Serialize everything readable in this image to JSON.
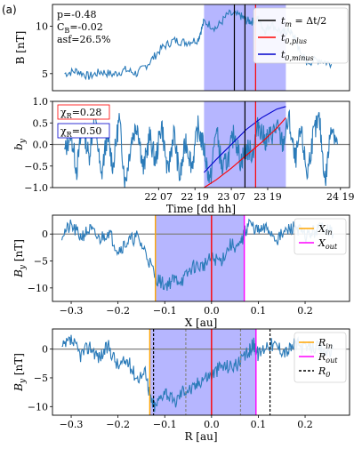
{
  "panel_label": "(a)",
  "colors": {
    "trace": "#2b7bb9",
    "shade": "#7a7aff",
    "zero": "#808080",
    "tm": "#000000",
    "plus": "#ff0000",
    "minus": "#0000cc",
    "in": "#ffa500",
    "out": "#ff00ff"
  },
  "chart_data": [
    {
      "id": "B",
      "type": "line",
      "ylabel": "B [nT]",
      "ylim": [
        3.2,
        12.3
      ],
      "yticks": [
        "5",
        "10"
      ],
      "yticks_vals": [
        5,
        10
      ],
      "annotation_lines": [
        "p=-0.48",
        "C_B=-0.02",
        "asf=26.5%"
      ],
      "legend": {
        "placement": "top-right",
        "entries": [
          {
            "label": "t_m = Δt/2",
            "color": "tm"
          },
          {
            "label": "t_0,plus",
            "color": "plus"
          },
          {
            "label": "t_0,minus",
            "color": "minus"
          }
        ]
      },
      "x_range_hours": [
        -4,
        94
      ],
      "shade_hours": [
        46,
        73
      ],
      "vlines_hours": {
        "tm_a": 56,
        "tm_b": 59.5,
        "plus": 63
      },
      "series": [
        {
          "x": [
            0,
            4,
            8,
            12,
            16,
            20,
            24,
            28,
            32,
            36,
            40,
            44,
            46,
            50,
            54,
            58,
            60,
            62,
            64,
            66,
            68,
            72,
            74,
            76,
            78,
            80,
            84,
            88
          ],
          "y": [
            5.0,
            5.3,
            4.7,
            5.2,
            4.9,
            5.4,
            5.0,
            6.2,
            7.7,
            8.5,
            8.3,
            8.6,
            10.5,
            9.8,
            11.3,
            11.1,
            10.6,
            10.5,
            10.8,
            9.5,
            10.2,
            9.3,
            9.6,
            8.7,
            7.0,
            6.2,
            6.5,
            6.0
          ]
        }
      ]
    },
    {
      "id": "by",
      "type": "line",
      "ylabel": "b_y",
      "xlabel": "Time [dd hh]",
      "ylim": [
        -1.0,
        1.0
      ],
      "yticks": [
        "−1.0",
        "−0.5",
        "0.0",
        "0.5",
        "1.0"
      ],
      "yticks_vals": [
        -1,
        -0.5,
        0,
        0.5,
        1
      ],
      "xticks": [
        "22 07",
        "22 19",
        "23 07",
        "23 19",
        "24 19"
      ],
      "xticks_hours": [
        31,
        43,
        55,
        67,
        91
      ],
      "chi": [
        {
          "label": "χ_R=0.28",
          "color": "plus"
        },
        {
          "label": "χ_R=0.50",
          "color": "minus"
        }
      ],
      "shade_hours": [
        46,
        73
      ],
      "vlines_hours": {
        "tm": 59.5,
        "plus": 63
      },
      "fit_plus": {
        "x": [
          46,
          50,
          55,
          60,
          65,
          70,
          73
        ],
        "y": [
          -1.0,
          -0.82,
          -0.55,
          -0.25,
          0.05,
          0.38,
          0.62
        ]
      },
      "fit_minus": {
        "x": [
          46,
          50,
          55,
          60,
          65,
          70,
          73
        ],
        "y": [
          -0.65,
          -0.35,
          0.0,
          0.35,
          0.62,
          0.82,
          0.88
        ]
      },
      "series": [
        {
          "x": [
            0,
            2,
            4,
            6,
            8,
            10,
            12,
            14,
            16,
            18,
            20,
            22,
            24,
            26,
            28,
            30,
            32,
            34,
            36,
            38,
            40,
            42,
            44,
            46,
            48,
            50,
            52,
            54,
            56,
            58,
            60,
            62,
            64,
            66,
            68,
            70,
            72,
            74,
            76,
            78,
            80,
            82,
            84,
            86,
            88,
            90
          ],
          "y": [
            -0.2,
            0.3,
            -0.6,
            0.5,
            -0.3,
            0.7,
            -0.8,
            0.2,
            -0.5,
            0.6,
            -0.9,
            0.1,
            0.5,
            -0.6,
            0.2,
            -0.4,
            0.5,
            -0.7,
            0.3,
            -0.8,
            0.1,
            -0.5,
            0.4,
            -0.1,
            -0.9,
            0.4,
            -0.6,
            -0.3,
            0.3,
            -0.4,
            -0.1,
            -0.2,
            0.5,
            0.1,
            0.2,
            0.4,
            0.0,
            0.6,
            -0.4,
            0.3,
            -0.7,
            0.2,
            0.6,
            -0.9,
            0.5,
            0.0
          ]
        }
      ]
    },
    {
      "id": "X",
      "type": "line",
      "ylabel": "B_y [nT]",
      "xlabel": "X [au]",
      "ylim": [
        -12.5,
        3.5
      ],
      "xlim": [
        -0.34,
        0.295
      ],
      "yticks": [
        "−10",
        "−5",
        "0"
      ],
      "yticks_vals": [
        -10,
        -5,
        0
      ],
      "xticks": [
        "−0.3",
        "−0.2",
        "−0.1",
        "0.0",
        "0.1",
        "0.2"
      ],
      "xticks_vals": [
        -0.3,
        -0.2,
        -0.1,
        0,
        0.1,
        0.2
      ],
      "shade": [
        -0.12,
        0.07
      ],
      "vlines": {
        "in": -0.12,
        "zero": 0.0,
        "out": 0.07
      },
      "legend": {
        "placement": "top-right",
        "entries": [
          {
            "label": "X_in",
            "color": "in"
          },
          {
            "label": "X_out",
            "color": "out"
          }
        ]
      },
      "series": [
        {
          "x": [
            -0.32,
            -0.3,
            -0.28,
            -0.26,
            -0.24,
            -0.22,
            -0.2,
            -0.18,
            -0.16,
            -0.14,
            -0.12,
            -0.1,
            -0.08,
            -0.06,
            -0.04,
            -0.02,
            0.0,
            0.02,
            0.04,
            0.06,
            0.07,
            0.08,
            0.1,
            0.12,
            0.14,
            0.16,
            0.18,
            0.2,
            0.22,
            0.24,
            0.26
          ],
          "y": [
            0,
            1.5,
            -0.5,
            0.8,
            -1.0,
            0.5,
            -3.0,
            -1.5,
            -0.5,
            -3.5,
            -8,
            -9.5,
            -8.5,
            -8.5,
            -6,
            -6,
            -4.5,
            -5,
            -2,
            -2.5,
            0,
            2,
            0.5,
            1,
            -1,
            0.5,
            1.5,
            -0.5,
            0.5,
            1.5,
            0
          ]
        }
      ]
    },
    {
      "id": "R",
      "type": "line",
      "ylabel": "B_y [nT]",
      "xlabel": "R [au]",
      "ylim": [
        -11.5,
        3.5
      ],
      "xlim": [
        -0.34,
        0.295
      ],
      "yticks": [
        "−10",
        "−5",
        "0"
      ],
      "yticks_vals": [
        -10,
        -5,
        0
      ],
      "xticks": [
        "−0.3",
        "−0.2",
        "−0.1",
        "0.0",
        "0.1",
        "0.2"
      ],
      "xticks_vals": [
        -0.3,
        -0.2,
        -0.1,
        0,
        0.1,
        0.2
      ],
      "shade": [
        -0.132,
        0.095
      ],
      "vlines": {
        "in": -0.132,
        "zero": 0.0,
        "out": 0.095,
        "r0_black": [
          -0.124,
          0.125
        ],
        "r0_gray": [
          -0.055,
          0.062
        ]
      },
      "legend": {
        "placement": "top-right",
        "entries": [
          {
            "label": "R_in",
            "color": "in"
          },
          {
            "label": "R_out",
            "color": "out"
          },
          {
            "label": "R_0",
            "color": "tm"
          }
        ]
      },
      "series": [
        {
          "x": [
            -0.32,
            -0.3,
            -0.28,
            -0.26,
            -0.24,
            -0.22,
            -0.2,
            -0.18,
            -0.16,
            -0.14,
            -0.13,
            -0.12,
            -0.1,
            -0.08,
            -0.06,
            -0.04,
            -0.02,
            0.0,
            0.02,
            0.04,
            0.06,
            0.08,
            0.09,
            0.1,
            0.12,
            0.14,
            0.16,
            0.18,
            0.2,
            0.22,
            0.24,
            0.26
          ],
          "y": [
            0,
            1.5,
            -1,
            0.5,
            -1.5,
            0.5,
            -3,
            -2,
            -5,
            -4,
            -9,
            -10,
            -7,
            -9.5,
            -7,
            -7,
            -5,
            -4.5,
            -3,
            -3,
            -2.5,
            -0.5,
            1,
            -1,
            1,
            0.5,
            -0.5,
            1,
            0,
            0.5,
            -0.5,
            0
          ]
        }
      ]
    }
  ]
}
